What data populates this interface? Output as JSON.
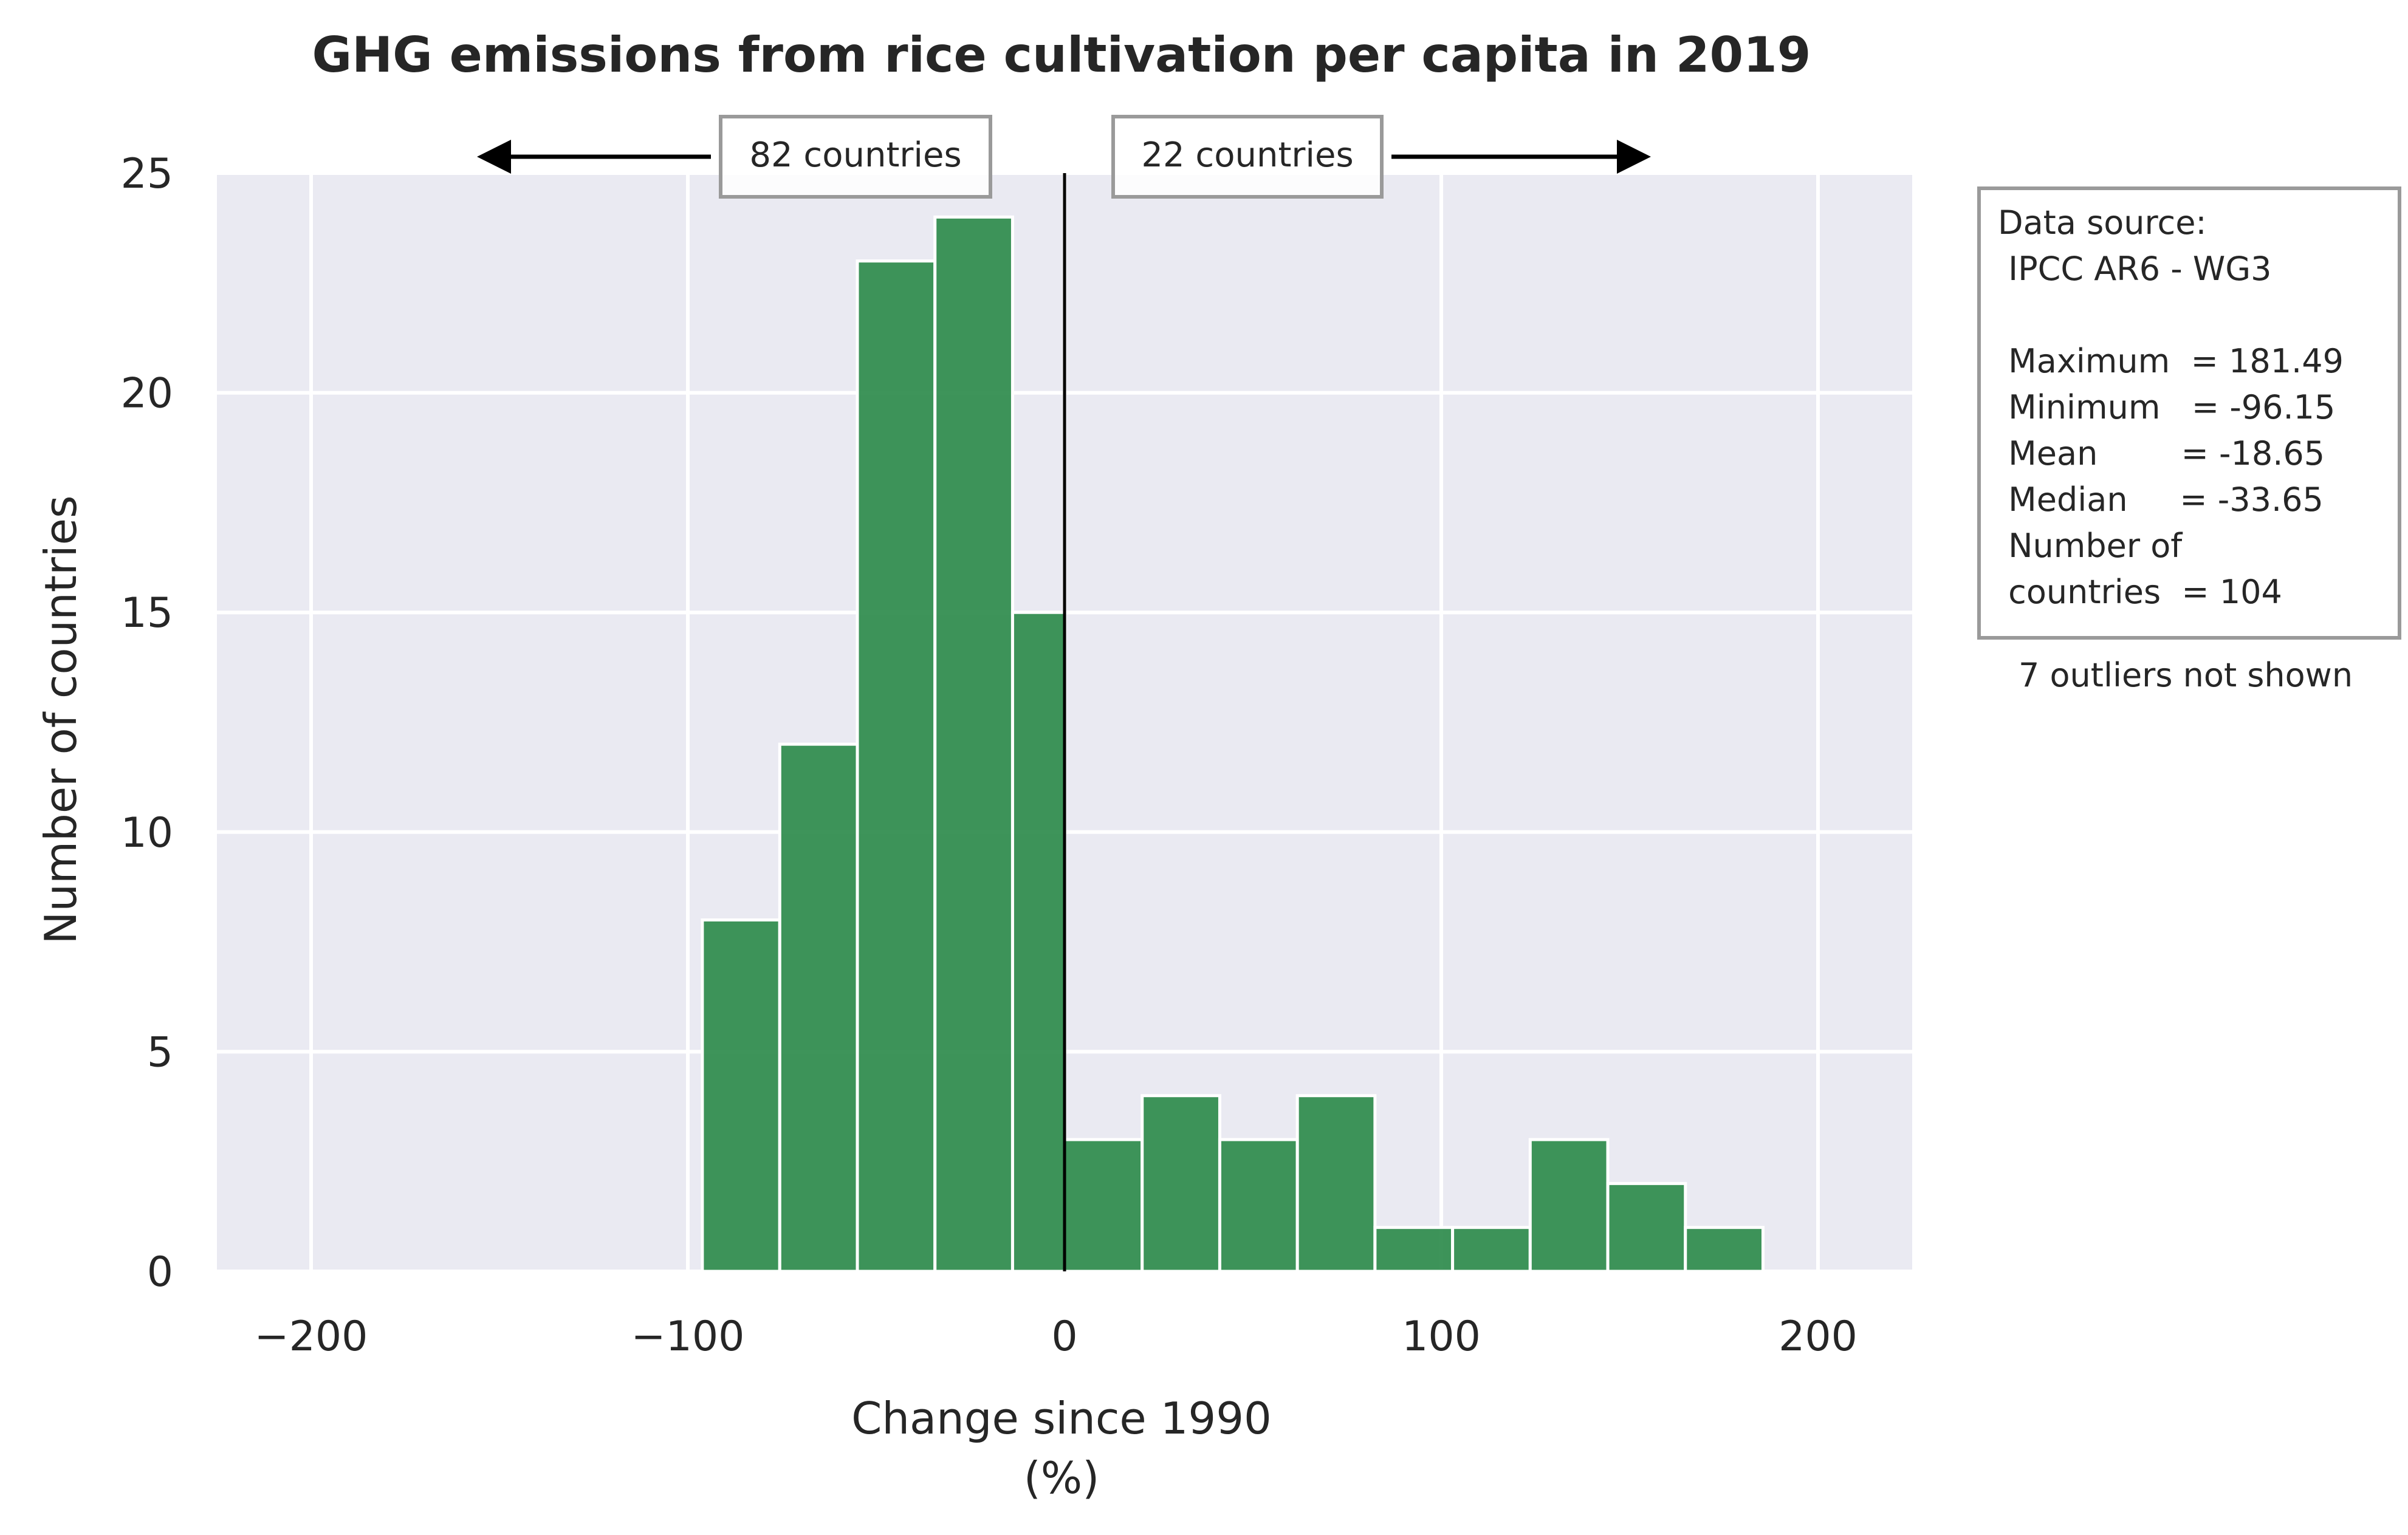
{
  "chart_data": {
    "type": "bar",
    "title": "GHG emissions from rice cultivation per capita in 2019",
    "xlabel": "Change since 1990",
    "xlabel_unit": "(%)",
    "ylabel": "Number of countries",
    "xlim": [
      -225,
      225
    ],
    "ylim": [
      0,
      25
    ],
    "grid": true,
    "x_ticks": [
      -200,
      -100,
      0,
      100,
      200
    ],
    "x_tick_labels": [
      "−200",
      "−100",
      "0",
      "100",
      "200"
    ],
    "y_ticks": [
      0,
      5,
      10,
      15,
      20,
      25
    ],
    "y_tick_labels": [
      "0",
      "5",
      "10",
      "15",
      "20",
      "25"
    ],
    "bins": [
      {
        "x0": -96.15,
        "x1": -75.6,
        "count": 8
      },
      {
        "x0": -75.6,
        "x1": -55.0,
        "count": 12
      },
      {
        "x0": -55.0,
        "x1": -34.4,
        "count": 23
      },
      {
        "x0": -34.4,
        "x1": -13.8,
        "count": 24
      },
      {
        "x0": -13.8,
        "x1": 0.0,
        "count": 15
      },
      {
        "x0": 0.0,
        "x1": 20.6,
        "count": 3
      },
      {
        "x0": 20.6,
        "x1": 41.2,
        "count": 4
      },
      {
        "x0": 41.2,
        "x1": 61.8,
        "count": 3
      },
      {
        "x0": 61.8,
        "x1": 82.4,
        "count": 4
      },
      {
        "x0": 82.4,
        "x1": 103.0,
        "count": 1
      },
      {
        "x0": 103.0,
        "x1": 123.6,
        "count": 1
      },
      {
        "x0": 123.6,
        "x1": 144.2,
        "count": 3
      },
      {
        "x0": 144.2,
        "x1": 164.8,
        "count": 2
      },
      {
        "x0": 164.8,
        "x1": 185.4,
        "count": 1
      }
    ],
    "bar_color": "#2e8b4c",
    "reference_line_x": 0,
    "annotations": {
      "left_count": "82 countries",
      "right_count": "22 countries"
    },
    "stats_box": {
      "lines": [
        "Data source:",
        " IPCC AR6 - WG3",
        "",
        " Maximum  = 181.49",
        " Minimum   = -96.15",
        " Mean        = -18.65",
        " Median     = -33.65",
        " Number of",
        " countries  = 104"
      ]
    },
    "outliers_note": "7 outliers not shown",
    "colors": {
      "plot_background": "#eaeaf2",
      "grid": "#ffffff",
      "bar": "#2e8b4c",
      "text": "#262626"
    }
  }
}
